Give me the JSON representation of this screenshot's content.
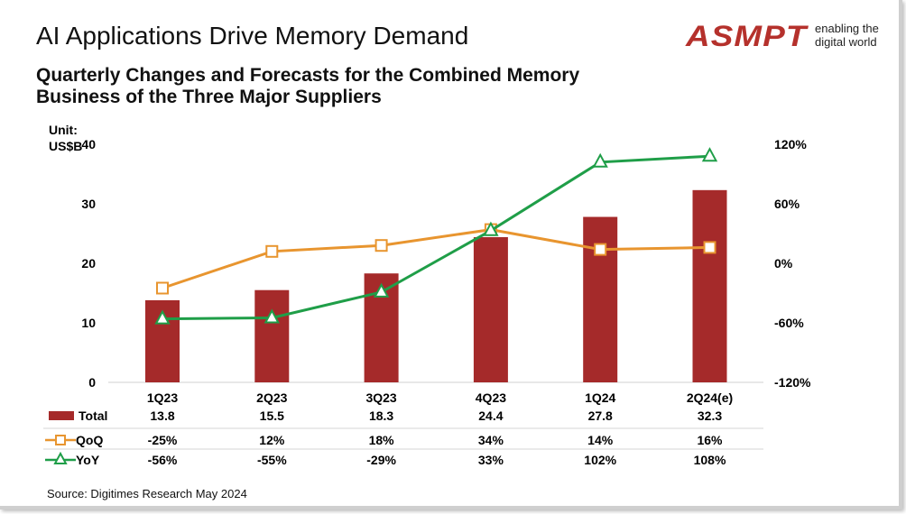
{
  "header": {
    "title": "AI Applications Drive Memory Demand",
    "subtitle": "Quarterly Changes and Forecasts for the Combined Memory Business of the Three Major Suppliers"
  },
  "logo": {
    "text": "ASMPT",
    "tagline_1": "enabling the",
    "tagline_2": "digital world"
  },
  "unit_label_1": "Unit:",
  "unit_label_2": "US$B",
  "source": "Source: Digitimes Research May 2024",
  "chart_data": {
    "type": "bar+line",
    "categories": [
      "1Q23",
      "2Q23",
      "3Q23",
      "4Q23",
      "1Q24",
      "2Q24(e)"
    ],
    "y_left": {
      "ylim": [
        0,
        40
      ],
      "ticks": [
        "0",
        "10",
        "20",
        "30",
        "40"
      ]
    },
    "y_right": {
      "ylim": [
        -120,
        120
      ],
      "ticks": [
        "-120%",
        "-60%",
        "0%",
        "60%",
        "120%"
      ]
    },
    "series": [
      {
        "name": "Total",
        "type": "bar",
        "axis": "left",
        "color": "#a52a2a",
        "values": [
          13.8,
          15.5,
          18.3,
          24.4,
          27.8,
          32.3
        ],
        "labels": [
          "13.8",
          "15.5",
          "18.3",
          "24.4",
          "27.8",
          "32.3"
        ]
      },
      {
        "name": "QoQ",
        "type": "line",
        "axis": "right",
        "marker": "square",
        "color": "#e8952f",
        "values": [
          -25,
          12,
          18,
          34,
          14,
          16
        ],
        "labels": [
          "-25%",
          "12%",
          "18%",
          "34%",
          "14%",
          "16%"
        ]
      },
      {
        "name": "YoY",
        "type": "line",
        "axis": "right",
        "marker": "triangle",
        "color": "#1f9e48",
        "values": [
          -56,
          -55,
          -29,
          33,
          102,
          108
        ],
        "labels": [
          "-56%",
          "-55%",
          "-29%",
          "33%",
          "102%",
          "108%"
        ]
      }
    ],
    "grid": false,
    "legend": "data-table"
  }
}
